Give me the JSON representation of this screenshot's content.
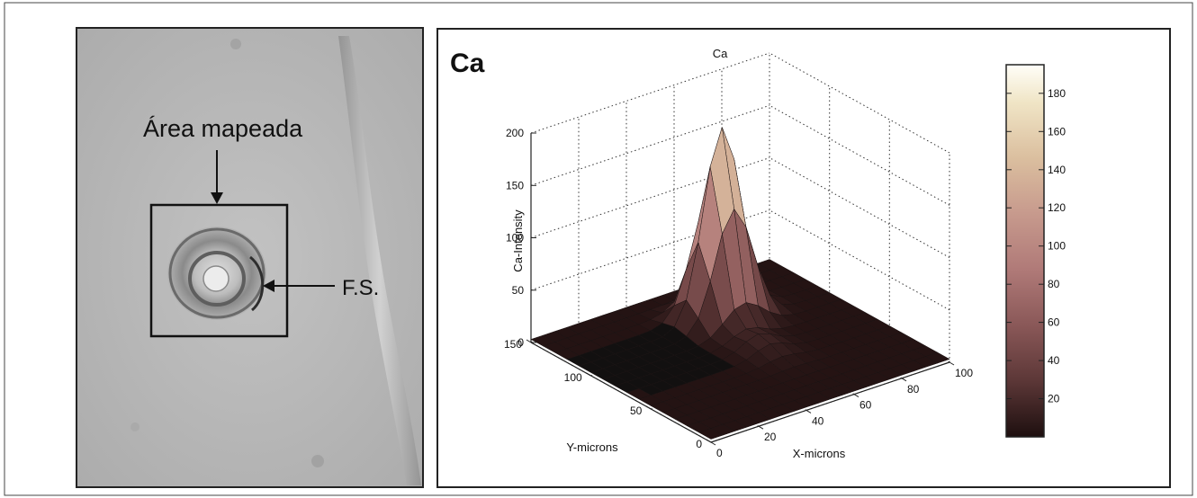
{
  "micrograph": {
    "label_area": "Área mapeada",
    "label_fs": "F.S."
  },
  "chart_data": {
    "type": "surface",
    "panel_label": "Ca",
    "title": "Ca",
    "xlabel": "X-microns",
    "ylabel": "Y-microns",
    "zlabel": "Ca-Intensity",
    "xlim": [
      0,
      100
    ],
    "ylim": [
      0,
      150
    ],
    "zlim": [
      0,
      200
    ],
    "x_ticks": [
      0,
      20,
      40,
      60,
      80,
      100
    ],
    "y_ticks": [
      0,
      50,
      100,
      150
    ],
    "z_ticks": [
      0,
      50,
      100,
      150,
      200
    ],
    "grid": true,
    "peak": {
      "x": 60,
      "y": 110,
      "z": 185
    },
    "colorbar": {
      "ticks": [
        20,
        40,
        60,
        80,
        100,
        120,
        140,
        160,
        180
      ],
      "range": [
        0,
        195
      ],
      "colormap": "pink"
    }
  },
  "colors": {
    "frame": "#222222",
    "surface_dark": "#1a1212",
    "surface_light": "#fffdf2"
  }
}
